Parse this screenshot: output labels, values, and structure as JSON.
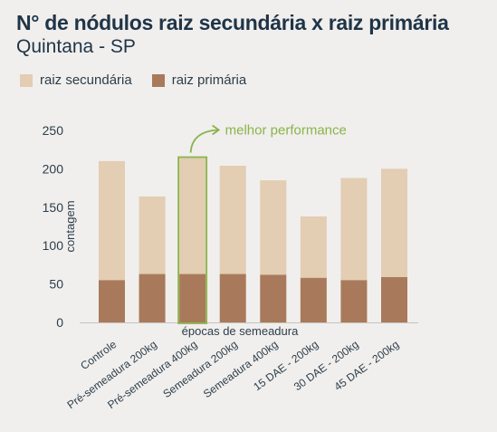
{
  "header": {
    "title": "N° de nódulos raiz secundária x raiz primária",
    "subtitle": "Quintana - SP"
  },
  "colors": {
    "secondary": "#e3cdb3",
    "primary": "#a87a5b",
    "highlight": "#8bb34b",
    "axis_text": "#2e3d4a",
    "background": "#f0efed"
  },
  "chart_data": {
    "type": "bar",
    "stacked": true,
    "categories": [
      "Controle",
      "Pré-semeadura 200kg",
      "Pré-semeadura 400kg",
      "Semeadura 200kg",
      "Semeadura 400kg",
      "15 DAE - 200kg",
      "30 DAE - 200kg",
      "45 DAE - 200kg"
    ],
    "series": [
      {
        "name": "raiz primária",
        "values": [
          55,
          63,
          63,
          63,
          62,
          58,
          55,
          59
        ]
      },
      {
        "name": "raiz secundária",
        "values": [
          155,
          101,
          151,
          141,
          123,
          80,
          133,
          141
        ]
      }
    ],
    "title": "N° de nódulos raiz secundária x raiz primária",
    "subtitle": "Quintana - SP",
    "xlabel": "épocas de semeadura",
    "ylabel": "contagem",
    "ylim": [
      0,
      250
    ],
    "yticks": [
      0,
      50,
      100,
      150,
      200,
      250
    ],
    "grid": false,
    "legend_position": "top-left",
    "highlight_index": 2,
    "annotation": "melhor performance"
  }
}
